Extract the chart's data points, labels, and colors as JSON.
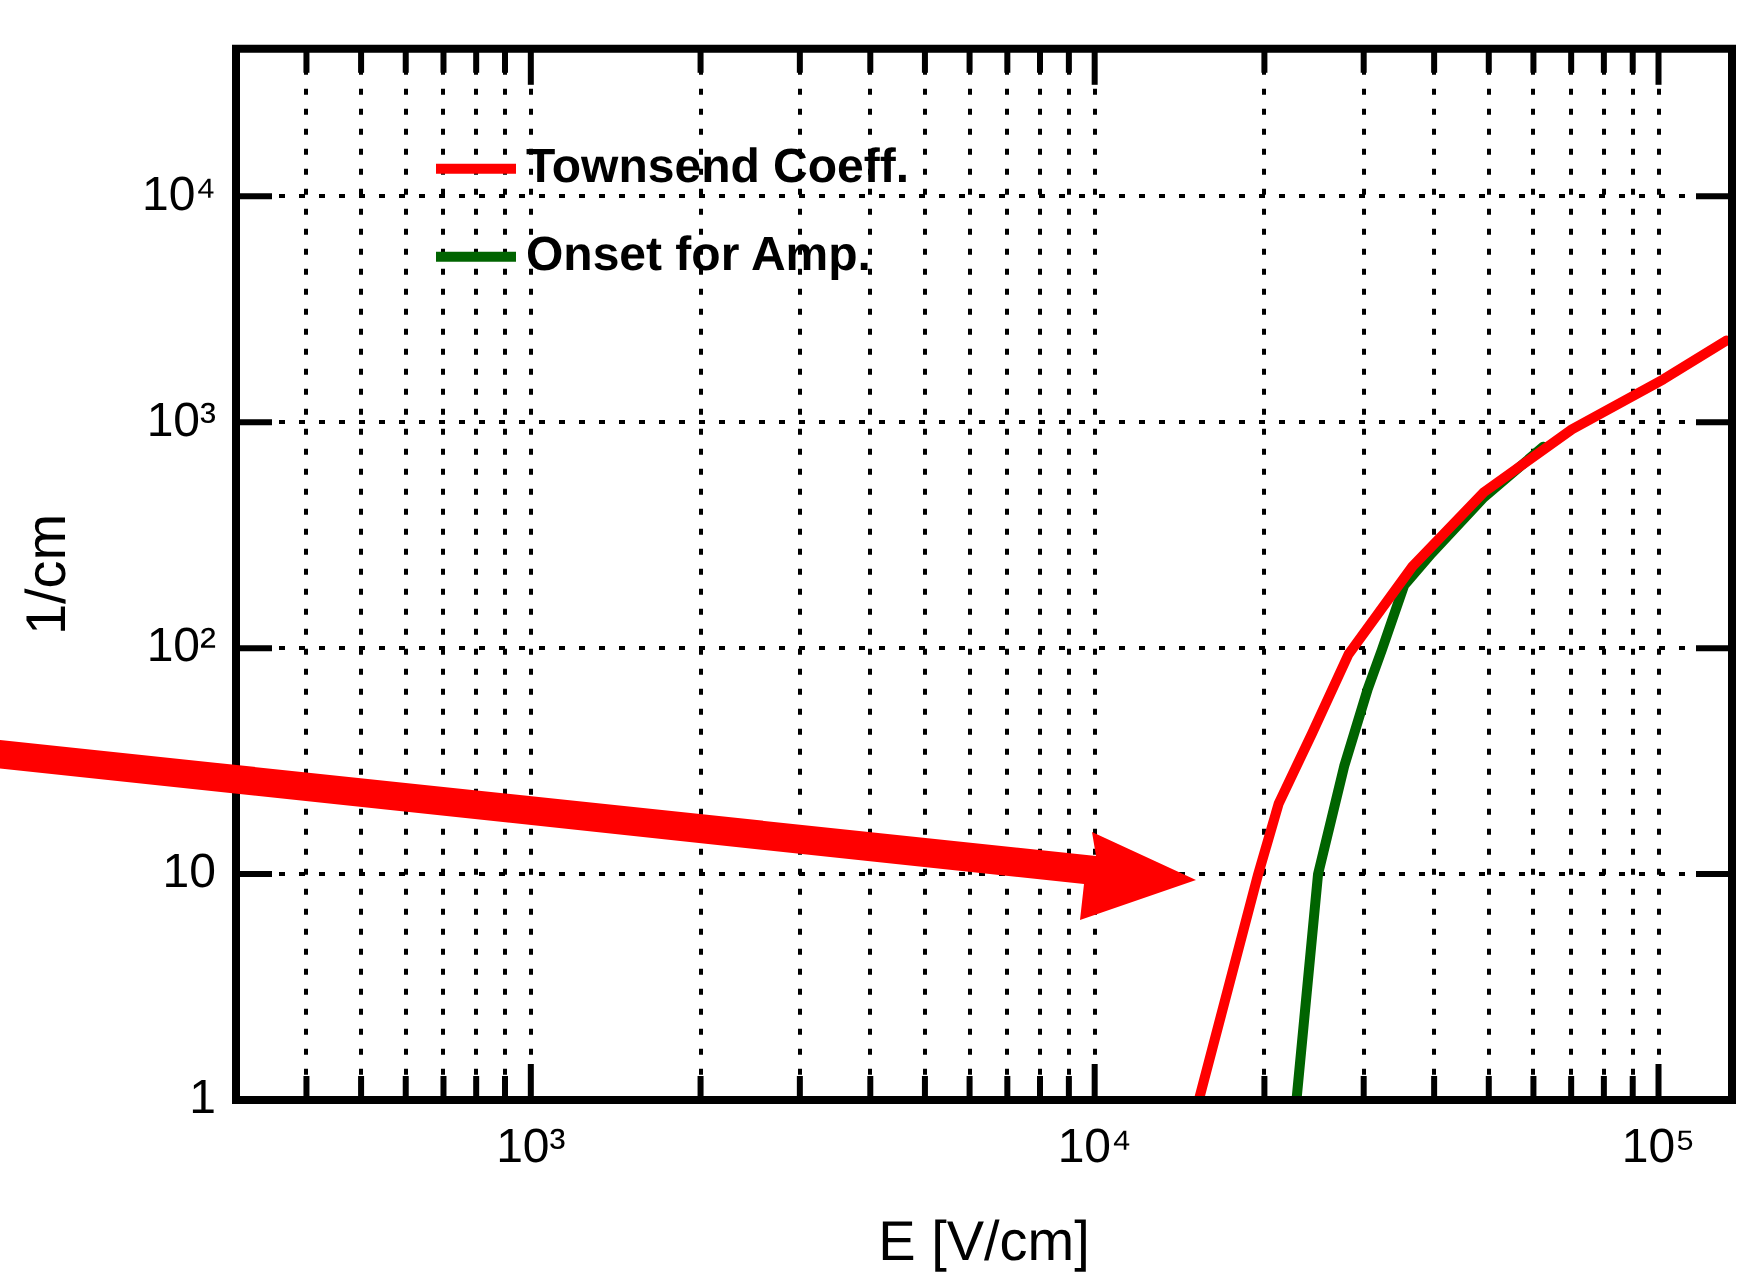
{
  "chart_data": {
    "type": "line",
    "xlabel": "E [V/cm]",
    "ylabel": "1/cm",
    "log": "xy",
    "grid": true,
    "legend": "top left",
    "marker": "none",
    "line_style": "solid",
    "xlim": [
      300,
      135000
    ],
    "ylim": [
      1,
      45000
    ],
    "xticks": [
      {
        "value": 400,
        "label": null
      },
      {
        "value": 500,
        "label": null
      },
      {
        "value": 600,
        "label": null
      },
      {
        "value": 700,
        "label": null
      },
      {
        "value": 800,
        "label": null
      },
      {
        "value": 900,
        "label": null
      },
      {
        "value": 1000,
        "label": "10³"
      },
      {
        "value": 2000,
        "label": null
      },
      {
        "value": 3000,
        "label": null
      },
      {
        "value": 4000,
        "label": null
      },
      {
        "value": 5000,
        "label": null
      },
      {
        "value": 6000,
        "label": null
      },
      {
        "value": 7000,
        "label": null
      },
      {
        "value": 8000,
        "label": null
      },
      {
        "value": 9000,
        "label": null
      },
      {
        "value": 10000,
        "label": "10⁴"
      },
      {
        "value": 20000,
        "label": null
      },
      {
        "value": 30000,
        "label": null
      },
      {
        "value": 40000,
        "label": null
      },
      {
        "value": 50000,
        "label": null
      },
      {
        "value": 60000,
        "label": null
      },
      {
        "value": 70000,
        "label": null
      },
      {
        "value": 80000,
        "label": null
      },
      {
        "value": 90000,
        "label": null
      },
      {
        "value": 100000,
        "label": "10⁵"
      }
    ],
    "yticks": [
      1,
      10,
      {
        "value": 100,
        "label": "10²"
      },
      {
        "value": 1000,
        "label": "10³"
      },
      {
        "value": 10000,
        "label": "10⁴"
      }
    ],
    "series": [
      {
        "name": "Townsend Coeff.",
        "color": "#ff0000",
        "x": [
          15300,
          19500,
          21200,
          24300,
          28200,
          36600,
          49000,
          70200,
          102000,
          132000
        ],
        "values": [
          1,
          10,
          20.5,
          42,
          94,
          230,
          490,
          930,
          1550,
          2300
        ]
      },
      {
        "name": "Onset for Amp.",
        "color": "#006400",
        "x": [
          22800,
          24900,
          27700,
          30500,
          32300,
          35400,
          39600,
          49000,
          62500
        ],
        "values": [
          1,
          10,
          30,
          66,
          98,
          190,
          263,
          465,
          780
        ]
      }
    ]
  }
}
